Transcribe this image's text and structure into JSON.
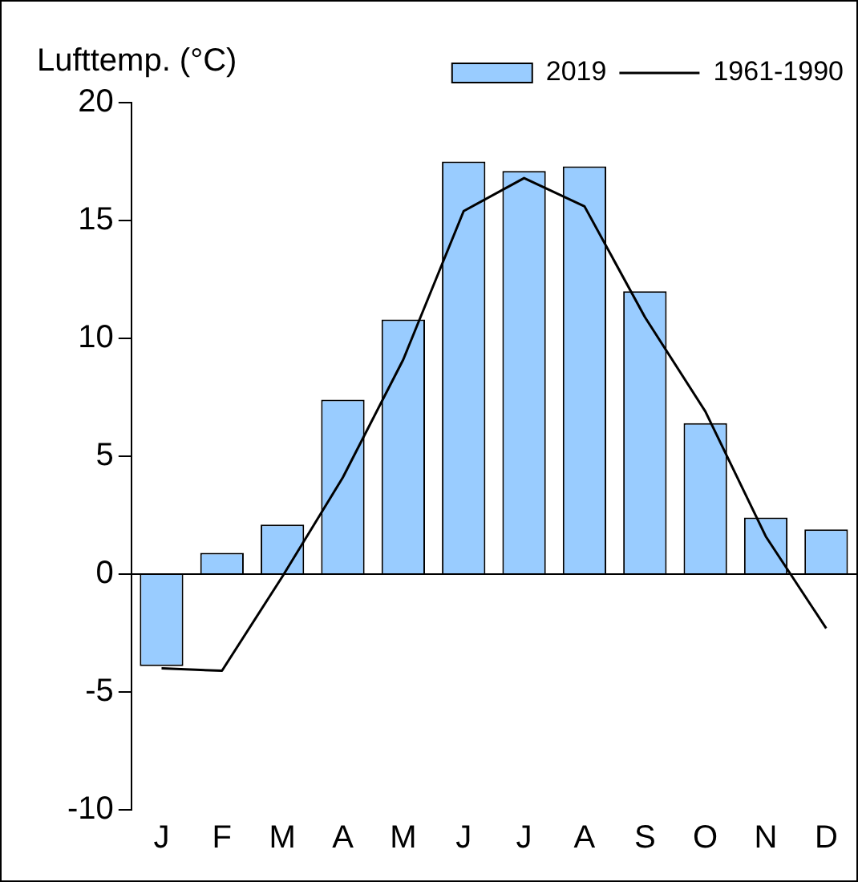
{
  "chart_data": {
    "type": "bar",
    "ylabel": "Lufttemp. (°C)",
    "categories": [
      "J",
      "F",
      "M",
      "A",
      "M",
      "J",
      "J",
      "A",
      "S",
      "O",
      "N",
      "D"
    ],
    "series": [
      {
        "name": "2019",
        "color": "#99ccff",
        "values": [
          -3.9,
          0.9,
          2.1,
          7.4,
          10.8,
          17.5,
          17.1,
          17.3,
          12.0,
          6.4,
          2.4,
          1.9
        ]
      },
      {
        "name": "1961-1990",
        "type": "line",
        "color": "#000000",
        "values": [
          -4.0,
          -4.1,
          -0.1,
          4.1,
          9.1,
          15.4,
          16.8,
          15.6,
          10.9,
          6.9,
          1.6,
          -2.3
        ]
      }
    ],
    "ylim": [
      -10,
      20
    ],
    "yticks": [
      -10,
      -5,
      0,
      5,
      10,
      15,
      20
    ],
    "grid": false,
    "ref_lines": [
      {
        "axis": "y",
        "value": 0,
        "color": "#000000"
      }
    ],
    "legend": "top right",
    "marker": "none",
    "line_style": "solid"
  }
}
